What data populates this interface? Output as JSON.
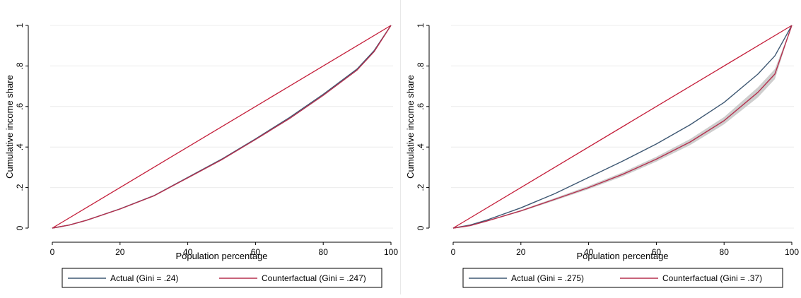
{
  "chart_data": [
    {
      "type": "line",
      "xlabel": "Population percentage",
      "ylabel": "Cumulative income share",
      "xlim": [
        0,
        100
      ],
      "ylim": [
        0,
        1
      ],
      "xticks": [
        "0",
        "20",
        "40",
        "60",
        "80",
        "100"
      ],
      "yticks": [
        "0",
        ".2",
        ".4",
        ".6",
        ".8",
        "1"
      ],
      "grid": "horizontal",
      "legend_position": "bottom",
      "x": [
        0,
        5,
        10,
        20,
        30,
        40,
        50,
        60,
        70,
        80,
        90,
        95,
        100
      ],
      "series": [
        {
          "name": "Actual (Gini = .24)",
          "color": "#3e5873",
          "values": [
            0,
            0.015,
            0.038,
            0.095,
            0.16,
            0.25,
            0.34,
            0.44,
            0.545,
            0.66,
            0.785,
            0.875,
            1.0
          ]
        },
        {
          "name": "Counterfactual (Gini = .247)",
          "color": "#b5304e",
          "values": [
            0,
            0.015,
            0.038,
            0.094,
            0.159,
            0.248,
            0.337,
            0.437,
            0.54,
            0.655,
            0.78,
            0.87,
            1.0
          ]
        }
      ],
      "equality_line": {
        "x": [
          0,
          100
        ],
        "values": [
          0,
          1
        ],
        "color": "#c41e3a"
      }
    },
    {
      "type": "line",
      "xlabel": "Population percentage",
      "ylabel": "Cumulative income share",
      "xlim": [
        0,
        100
      ],
      "ylim": [
        0,
        1
      ],
      "xticks": [
        "0",
        "20",
        "40",
        "60",
        "80",
        "100"
      ],
      "yticks": [
        "0",
        ".2",
        ".4",
        ".6",
        ".8",
        "1"
      ],
      "grid": "horizontal",
      "legend_position": "bottom",
      "x": [
        0,
        5,
        10,
        20,
        30,
        40,
        50,
        60,
        70,
        80,
        90,
        95,
        100
      ],
      "series": [
        {
          "name": "Actual (Gini = .275)",
          "color": "#3e5873",
          "values": [
            0,
            0.015,
            0.04,
            0.1,
            0.17,
            0.25,
            0.33,
            0.415,
            0.51,
            0.62,
            0.76,
            0.85,
            1.0
          ]
        },
        {
          "name": "Counterfactual (Gini = .37)",
          "color": "#b5304e",
          "values": [
            0,
            0.012,
            0.035,
            0.085,
            0.142,
            0.2,
            0.265,
            0.34,
            0.425,
            0.53,
            0.67,
            0.76,
            1.0
          ],
          "band_lower": [
            0,
            0.011,
            0.033,
            0.081,
            0.136,
            0.192,
            0.255,
            0.328,
            0.41,
            0.512,
            0.645,
            0.735,
            1.0
          ],
          "band_upper": [
            0,
            0.013,
            0.037,
            0.089,
            0.148,
            0.208,
            0.275,
            0.352,
            0.44,
            0.548,
            0.695,
            0.785,
            1.0
          ]
        }
      ],
      "equality_line": {
        "x": [
          0,
          100
        ],
        "values": [
          0,
          1
        ],
        "color": "#c41e3a"
      }
    }
  ]
}
